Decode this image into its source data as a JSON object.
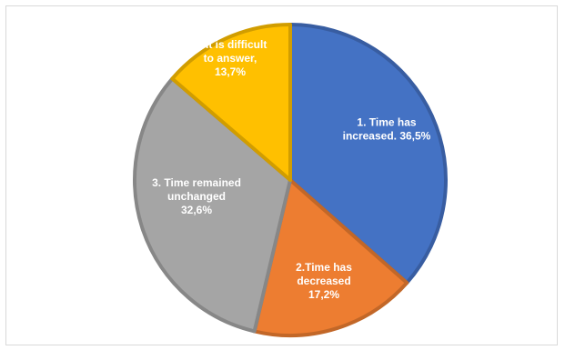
{
  "chart_data": {
    "type": "pie",
    "title": "",
    "legend": "none",
    "slices": [
      {
        "label_lines": [
          "1. Time has",
          "increased.  36,5%"
        ],
        "value": 36.5,
        "color": "#4472C4"
      },
      {
        "label_lines": [
          "2.Time has",
          "decreased",
          "17,2%"
        ],
        "value": 17.2,
        "color": "#ED7D31"
      },
      {
        "label_lines": [
          "3. Time remained",
          "unchanged",
          "32,6%"
        ],
        "value": 32.6,
        "color": "#A5A5A5"
      },
      {
        "label_lines": [
          "4. It is difficult",
          "to answer,",
          "13,7%"
        ],
        "value": 13.7,
        "color": "#FFC000"
      }
    ]
  }
}
